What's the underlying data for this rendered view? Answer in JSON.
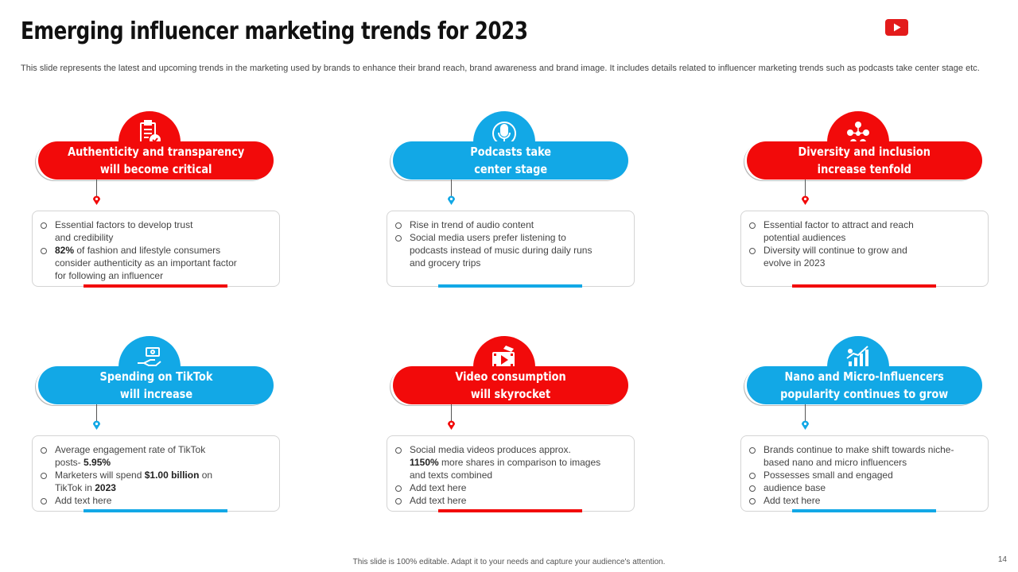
{
  "slide": {
    "title": "Emerging influencer marketing trends for 2023",
    "subtitle": "This slide represents the latest and upcoming trends in the marketing used by brands to enhance their brand reach, brand awareness and brand image. It includes details related to influencer marketing trends such as podcasts take center stage etc.",
    "footer": "This slide is 100% editable.  Adapt it to your needs and capture your audience's attention.",
    "page_number": "14",
    "top_right_icon": "youtube-logo-icon"
  },
  "colors": {
    "red": "#f20a0a",
    "blue": "#12a8e6"
  },
  "cards": [
    {
      "title": "Authenticity and transparency\nwill become critical",
      "accent": "red",
      "icon": "clipboard-checklist-icon",
      "bullets": [
        [
          "Essential factors to develop trust\nand credibility"
        ],
        [
          "82%",
          " of fashion and lifestyle consumers\nconsider authenticity as an important factor\nfor following  an influencer"
        ]
      ]
    },
    {
      "title": "Podcasts take\ncenter stage",
      "accent": "blue",
      "icon": "microphone-icon",
      "bullets": [
        [
          "Rise in trend of audio content"
        ],
        [
          "Social media users prefer listening to\npodcasts instead of music during daily runs\nand grocery trips"
        ]
      ]
    },
    {
      "title": "Diversity and inclusion\nincrease tenfold",
      "accent": "red",
      "icon": "people-network-icon",
      "bullets": [
        [
          "Essential factor to attract and reach\npotential audiences"
        ],
        [
          "Diversity  will continue to grow  and\nevolve  in 2023"
        ]
      ]
    },
    {
      "title": "Spending on TikTok\nwill increase",
      "accent": "blue",
      "icon": "money-hand-icon",
      "bullets": [
        [
          "Average  engagement  rate of TikTok\nposts- ",
          "5.95%"
        ],
        [
          "Marketers will spend ",
          "$1.00 billion",
          " on\nTikTok  in ",
          "2023"
        ],
        [
          "Add text here"
        ]
      ]
    },
    {
      "title": "Video consumption\nwill skyrocket",
      "accent": "red",
      "icon": "video-film-icon",
      "bullets": [
        [
          "Social media videos  produces approx.\n",
          "1150%",
          "  more shares in comparison  to images\nand texts combined"
        ],
        [
          "Add text here"
        ],
        [
          "Add text here"
        ]
      ]
    },
    {
      "title": "Nano and Micro-Influencers\npopularity continues to grow",
      "accent": "blue",
      "icon": "growth-chart-icon",
      "bullets": [
        [
          "Brands continue to make shift towards niche-\nbased nano and micro influencers"
        ],
        [
          "Possesses small and engaged"
        ],
        [
          "audience base"
        ],
        [
          "Add text here"
        ]
      ]
    }
  ]
}
